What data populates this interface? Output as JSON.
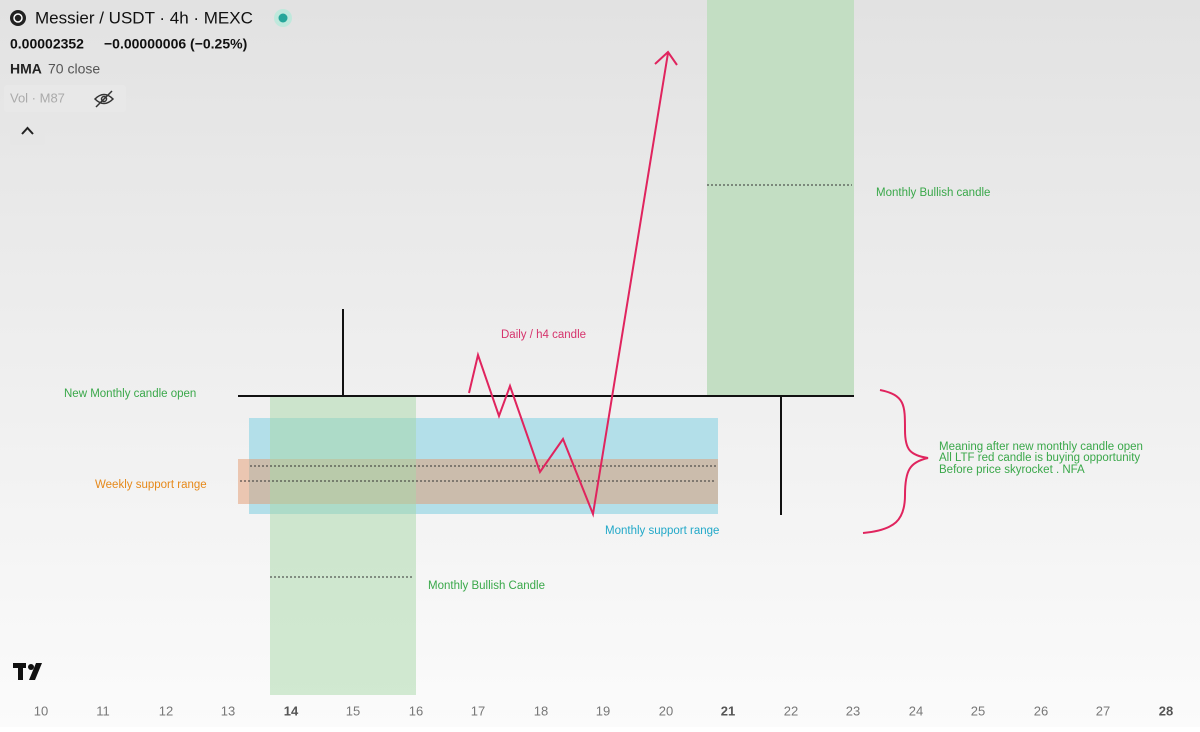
{
  "header": {
    "title": "Messier / USDT · 4h · MEXC",
    "price": "0.00002352",
    "change": "−0.00000006 (−0.25%)",
    "indicator": {
      "name": "HMA",
      "params": "70 close"
    },
    "volume": "Vol · M87"
  },
  "annotations": {
    "top_candle": "Monthly Bullish candle",
    "daily": "Daily / h4 candle",
    "new_open": "New Monthly candle open",
    "weekly": "Weekly support range",
    "monthly_support": "Monthly support range",
    "bottom_candle": "Monthly Bullish Candle",
    "meaning": [
      "Meaning after new monthly candle open",
      "All LTF red candle is buying opportunity",
      "Before price skyrocket . NFA"
    ]
  },
  "x_axis": {
    "labels": [
      "10",
      "11",
      "12",
      "13",
      "14",
      "15",
      "16",
      "17",
      "18",
      "19",
      "20",
      "21",
      "22",
      "23",
      "24",
      "25",
      "26",
      "27",
      "28"
    ]
  }
}
